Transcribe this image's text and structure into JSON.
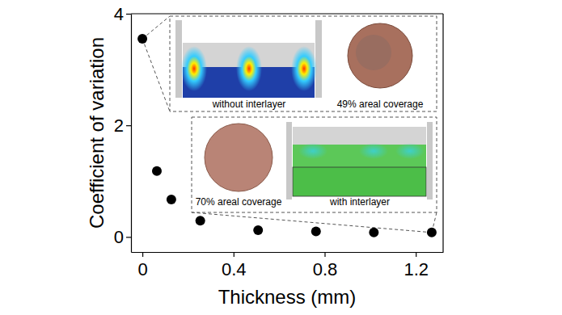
{
  "chart_data": {
    "type": "scatter",
    "x_label": "Thickness (mm)",
    "y_label": "Coefficient of variation",
    "x": [
      0,
      0.0635,
      0.127,
      0.254,
      0.508,
      0.762,
      1.016,
      1.27
    ],
    "values": [
      3.55,
      1.18,
      0.67,
      0.29,
      0.12,
      0.1,
      0.08,
      0.08
    ],
    "color": "#000000",
    "marker": "circle",
    "xlim": [
      -0.05,
      1.32
    ],
    "ylim": [
      -0.27,
      4
    ],
    "xticks": [
      0,
      0.4,
      0.8,
      1.2
    ],
    "yticks": [
      0,
      2,
      4
    ],
    "grid": false,
    "annotations": [
      "without interlayer",
      "49% areal coverage",
      "70% areal coverage",
      "with interlayer"
    ]
  }
}
